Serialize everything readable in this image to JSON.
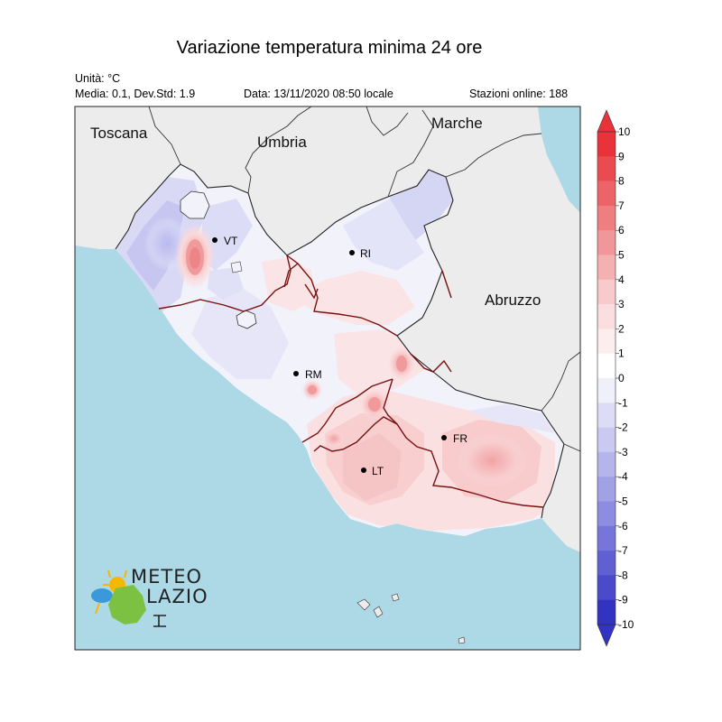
{
  "title": "Variazione temperatura minima 24 ore",
  "unit_label": "Unità: °C",
  "stats_label": "Media: 0.1, Dev.Std: 1.9",
  "date_label": "Data: 13/11/2020 08:50 locale",
  "stations_label": "Stazioni online: 188",
  "regions": {
    "toscana": "Toscana",
    "umbria": "Umbria",
    "marche": "Marche",
    "abruzzo": "Abruzzo"
  },
  "cities": {
    "vt": "VT",
    "ri": "RI",
    "rm": "RM",
    "fr": "FR",
    "lt": "LT"
  },
  "colorbar": {
    "ticks": [
      "10",
      "9",
      "8",
      "7",
      "6",
      "5",
      "4",
      "3",
      "2",
      "1",
      "0",
      "-1",
      "-2",
      "-3",
      "-4",
      "-5",
      "-6",
      "-7",
      "-8",
      "-9",
      "-10"
    ],
    "colors": [
      "#e8333a",
      "#ea4b50",
      "#ec6468",
      "#ef7e80",
      "#f29799",
      "#f5b1b2",
      "#f8cacb",
      "#fbdfe0",
      "#fdeeee",
      "#ffffff",
      "#f0f0fb",
      "#dcdcf6",
      "#c9c9f1",
      "#b5b5ec",
      "#a1a1e6",
      "#8c8ce0",
      "#7676da",
      "#6060d3",
      "#4a4acb",
      "#3333c2"
    ],
    "top_arrow_color": "#e8333a",
    "bottom_arrow_color": "#3333c2"
  },
  "logo": {
    "line1": "METEO",
    "line2": "LAZIO"
  },
  "colors": {
    "sea": "#add8e6",
    "land_outside": "#ececec",
    "neutral": "#f4f4fb"
  }
}
